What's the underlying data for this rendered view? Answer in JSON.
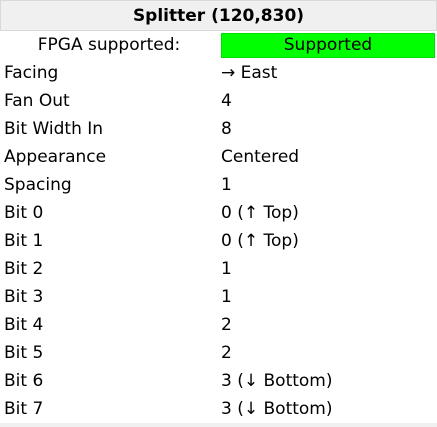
{
  "title": "Splitter (120,830)",
  "fpga": {
    "label": "FPGA supported:",
    "value": "Supported",
    "status_color": "#00ff00"
  },
  "attributes": [
    {
      "label": "Facing",
      "value": "→ East"
    },
    {
      "label": "Fan Out",
      "value": "4"
    },
    {
      "label": "Bit Width In",
      "value": "8"
    },
    {
      "label": "Appearance",
      "value": "Centered"
    },
    {
      "label": "Spacing",
      "value": "1"
    },
    {
      "label": "Bit 0",
      "value": "0 (↑ Top)"
    },
    {
      "label": "Bit 1",
      "value": "0 (↑ Top)"
    },
    {
      "label": "Bit 2",
      "value": "1"
    },
    {
      "label": "Bit 3",
      "value": "1"
    },
    {
      "label": "Bit 4",
      "value": "2"
    },
    {
      "label": "Bit 5",
      "value": "2"
    },
    {
      "label": "Bit 6",
      "value": "3 (↓ Bottom)"
    },
    {
      "label": "Bit 7",
      "value": "3 (↓ Bottom)"
    }
  ]
}
